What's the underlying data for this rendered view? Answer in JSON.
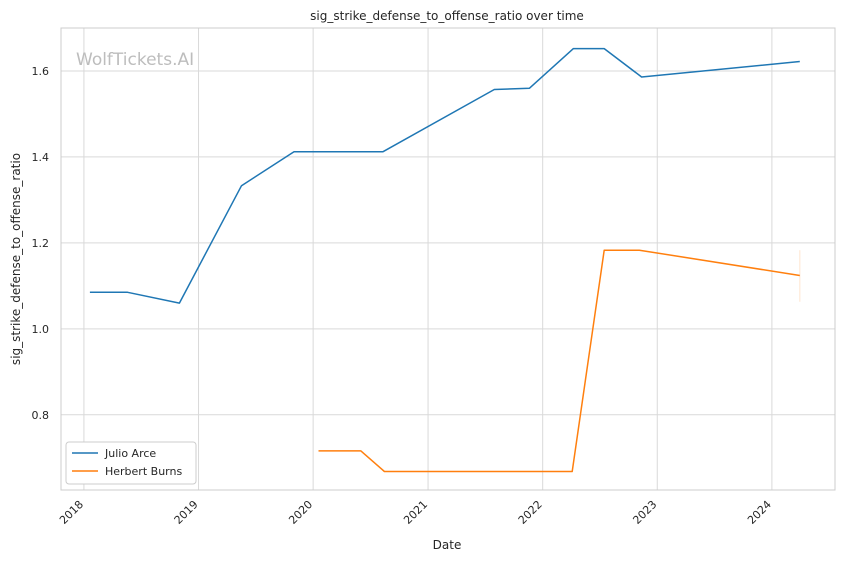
{
  "chart_data": {
    "type": "line",
    "title": "sig_strike_defense_to_offense_ratio over time",
    "xlabel": "Date",
    "ylabel": "sig_strike_defense_to_offense_ratio",
    "watermark": "WolfTickets.AI",
    "x_ticks": [
      "2018",
      "2019",
      "2020",
      "2021",
      "2022",
      "2023",
      "2024"
    ],
    "y_ticks": [
      "0.8",
      "1.0",
      "1.2",
      "1.4",
      "1.6"
    ],
    "xlim": [
      "2017-10-20",
      "2024-07-20"
    ],
    "ylim": [
      0.625,
      1.7
    ],
    "grid": true,
    "legend_position": "lower-left",
    "series": [
      {
        "name": "Julio Arce",
        "color": "#1f77b4",
        "points": [
          {
            "x": "2018-01-20",
            "y": 1.085
          },
          {
            "x": "2018-05-20",
            "y": 1.085
          },
          {
            "x": "2018-11-01",
            "y": 1.06
          },
          {
            "x": "2019-05-18",
            "y": 1.333
          },
          {
            "x": "2019-11-01",
            "y": 1.412
          },
          {
            "x": "2020-08-10",
            "y": 1.412
          },
          {
            "x": "2021-07-31",
            "y": 1.557
          },
          {
            "x": "2021-11-20",
            "y": 1.56
          },
          {
            "x": "2022-04-09",
            "y": 1.652
          },
          {
            "x": "2022-07-16",
            "y": 1.652
          },
          {
            "x": "2022-11-12",
            "y": 1.586
          },
          {
            "x": "2024-03-30",
            "y": 1.622
          }
        ]
      },
      {
        "name": "Herbert Burns",
        "color": "#ff7f0e",
        "points": [
          {
            "x": "2020-01-18",
            "y": 0.716
          },
          {
            "x": "2020-06-01",
            "y": 0.716
          },
          {
            "x": "2020-08-15",
            "y": 0.668
          },
          {
            "x": "2022-04-05",
            "y": 0.668
          },
          {
            "x": "2022-07-16",
            "y": 1.183
          },
          {
            "x": "2022-11-05",
            "y": 1.183
          },
          {
            "x": "2024-03-30",
            "y": 1.124
          }
        ],
        "error_bar": {
          "x": "2024-03-30",
          "low": 1.063,
          "high": 1.183
        }
      }
    ]
  }
}
